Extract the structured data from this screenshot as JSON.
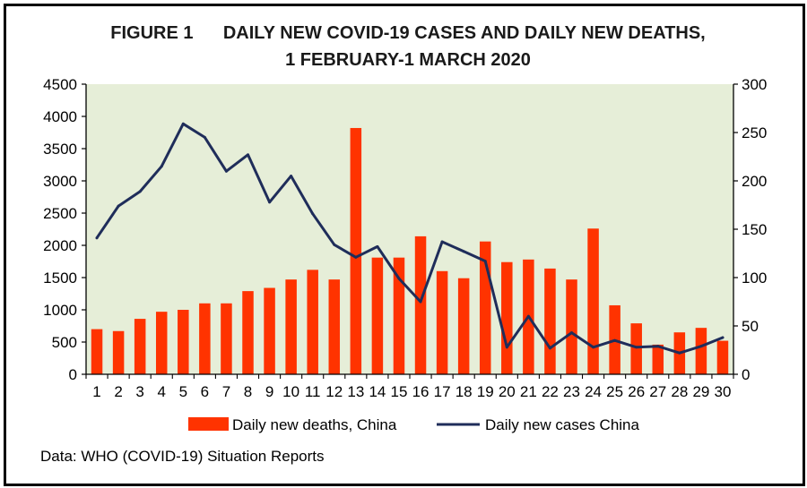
{
  "chart_data": {
    "type": "bar",
    "title_line1": "FIGURE 1      DAILY NEW COVID-19 CASES AND DAILY NEW DEATHS,",
    "title_line2": "1 FEBRUARY-1 MARCH 2020",
    "categories": [
      "1",
      "2",
      "3",
      "4",
      "5",
      "6",
      "7",
      "8",
      "9",
      "10",
      "11",
      "12",
      "13",
      "14",
      "15",
      "16",
      "17",
      "18",
      "19",
      "20",
      "21",
      "22",
      "23",
      "24",
      "25",
      "26",
      "27",
      "28",
      "29",
      "30"
    ],
    "series": [
      {
        "name": "Daily new deaths, China",
        "type": "bar",
        "axis": "left",
        "color": "#ff3300",
        "values": [
          700,
          670,
          860,
          970,
          1000,
          1100,
          1100,
          1290,
          1340,
          1470,
          1620,
          1470,
          3820,
          1810,
          1810,
          2140,
          1600,
          1490,
          2060,
          1740,
          1780,
          1640,
          1470,
          2260,
          1070,
          790,
          460,
          650,
          720,
          520
        ]
      },
      {
        "name": "Daily new cases China",
        "type": "line",
        "axis": "right",
        "color": "#1f2d5a",
        "values": [
          141,
          174,
          189,
          215,
          259,
          245,
          210,
          227,
          178,
          205,
          166,
          134,
          121,
          132,
          99,
          75,
          137,
          127,
          117,
          28,
          60,
          27,
          43,
          28,
          35,
          28,
          29,
          22,
          29,
          38
        ]
      }
    ],
    "y_left": {
      "min": 0,
      "max": 4500,
      "ticks": [
        0,
        500,
        1000,
        1500,
        2000,
        2500,
        3000,
        3500,
        4000,
        4500
      ]
    },
    "y_right": {
      "min": 0,
      "max": 300,
      "ticks": [
        0,
        50,
        100,
        150,
        200,
        250,
        300
      ]
    },
    "grid": false,
    "legend_position": "bottom",
    "plot_background": "#e6eed8",
    "source": "Data: WHO (COVID-19) Situation Reports"
  }
}
